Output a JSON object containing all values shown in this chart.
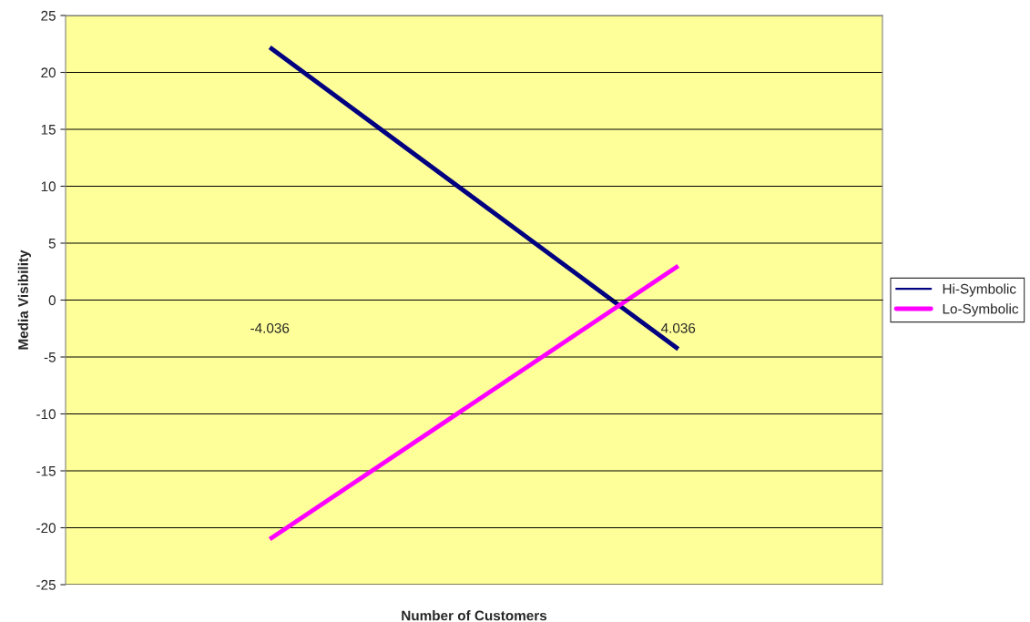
{
  "chart_data": {
    "type": "line",
    "xlabel": "Number of Customers",
    "ylabel": "Media Visibility",
    "categories": [
      "-4.036",
      "4.036"
    ],
    "series": [
      {
        "name": "Hi-Symbolic",
        "color": "#000080",
        "values": [
          22.2,
          -4.3
        ]
      },
      {
        "name": "Lo-Symbolic",
        "color": "#ff00ff",
        "values": [
          -21.0,
          3.0
        ]
      }
    ],
    "ylim": [
      -25,
      25
    ],
    "yticks": [
      -25,
      -20,
      -15,
      -10,
      -5,
      0,
      5,
      10,
      15,
      20,
      25
    ],
    "grid": "y",
    "legend": "right",
    "marker": "none",
    "line_style": "solid"
  }
}
